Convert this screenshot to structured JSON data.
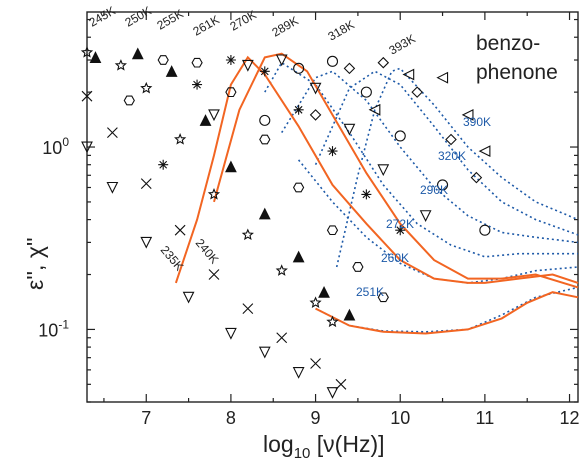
{
  "chart_data": {
    "type": "scatter",
    "xlabel_prefix": "log",
    "xlabel_sub": "10",
    "xlabel_suffix": " [ν(Hz)]",
    "ylabel": "ε'', χ''",
    "x_range": [
      6.3,
      12.1
    ],
    "y_range": [
      0.04,
      5.5
    ],
    "y_scale": "log",
    "x_ticks": [
      "7",
      "8",
      "9",
      "10",
      "11",
      "12"
    ],
    "y_ticks": [
      "10-1",
      "100"
    ],
    "annotation_line1": "benzo-",
    "annotation_line2": "phenone",
    "colors": {
      "solid": "#f26522",
      "dotted": "#1e5aa8",
      "marker": "#111111",
      "label_blue": "#1e5aa8"
    },
    "markers": [
      {
        "T": "235K",
        "marker": "triangle-down-open",
        "points": [
          [
            6.3,
            1.0
          ],
          [
            6.6,
            0.6
          ],
          [
            7.0,
            0.3
          ],
          [
            7.5,
            0.15
          ],
          [
            8.0,
            0.095
          ],
          [
            8.4,
            0.075
          ],
          [
            8.8,
            0.058
          ],
          [
            9.2,
            0.045
          ]
        ]
      },
      {
        "T": "240K",
        "marker": "x",
        "points": [
          [
            6.3,
            1.9
          ],
          [
            6.6,
            1.2
          ],
          [
            7.0,
            0.63
          ],
          [
            7.4,
            0.35
          ],
          [
            7.8,
            0.2
          ],
          [
            8.2,
            0.13
          ],
          [
            8.6,
            0.09
          ],
          [
            9.0,
            0.065
          ],
          [
            9.3,
            0.05
          ]
        ]
      },
      {
        "T": "245K",
        "marker": "star-open",
        "points": [
          [
            6.3,
            3.3
          ],
          [
            6.7,
            2.8
          ],
          [
            7.0,
            2.1
          ],
          [
            7.4,
            1.1
          ],
          [
            7.8,
            0.55
          ],
          [
            8.2,
            0.33
          ],
          [
            8.6,
            0.21
          ],
          [
            9.0,
            0.14
          ],
          [
            9.2,
            0.11
          ]
        ]
      },
      {
        "T": "250K",
        "marker": "triangle-up-filled",
        "points": [
          [
            6.4,
            3.1
          ],
          [
            6.9,
            3.25
          ],
          [
            7.3,
            2.6
          ],
          [
            7.7,
            1.4
          ],
          [
            8.0,
            0.78
          ],
          [
            8.4,
            0.43
          ],
          [
            8.8,
            0.25
          ],
          [
            9.1,
            0.16
          ],
          [
            9.4,
            0.12
          ]
        ]
      },
      {
        "T": "255K",
        "marker": "hexagon-open",
        "points": [
          [
            6.8,
            1.8
          ],
          [
            7.2,
            3.0
          ],
          [
            7.6,
            2.9
          ],
          [
            8.0,
            2.0
          ],
          [
            8.4,
            1.1
          ],
          [
            8.8,
            0.6
          ],
          [
            9.2,
            0.35
          ],
          [
            9.5,
            0.22
          ],
          [
            9.8,
            0.15
          ]
        ]
      },
      {
        "T": "261K",
        "marker": "asterisk",
        "points": [
          [
            7.2,
            0.8
          ],
          [
            7.6,
            2.2
          ],
          [
            8.0,
            3.0
          ],
          [
            8.4,
            2.6
          ],
          [
            8.8,
            1.6
          ],
          [
            9.2,
            0.95
          ],
          [
            9.6,
            0.55
          ],
          [
            10.0,
            0.35
          ]
        ]
      },
      {
        "T": "270K",
        "marker": "triangle-down-open",
        "points": [
          [
            7.8,
            1.5
          ],
          [
            8.2,
            2.8
          ],
          [
            8.6,
            3.0
          ],
          [
            9.0,
            2.1
          ],
          [
            9.4,
            1.25
          ],
          [
            9.8,
            0.75
          ],
          [
            10.3,
            0.42
          ]
        ]
      },
      {
        "T": "289K",
        "marker": "circle-open",
        "points": [
          [
            8.4,
            1.4
          ],
          [
            8.8,
            2.7
          ],
          [
            9.2,
            2.95
          ],
          [
            9.6,
            2.0
          ],
          [
            10.0,
            1.15
          ],
          [
            10.5,
            0.62
          ],
          [
            11.0,
            0.35
          ]
        ]
      },
      {
        "T": "318K",
        "marker": "diamond-open",
        "points": [
          [
            9.0,
            1.5
          ],
          [
            9.4,
            2.7
          ],
          [
            9.8,
            2.9
          ],
          [
            10.2,
            2.0
          ],
          [
            10.6,
            1.1
          ],
          [
            10.9,
            0.68
          ]
        ]
      },
      {
        "T": "393K",
        "marker": "triangle-left-open",
        "points": [
          [
            9.7,
            1.6
          ],
          [
            10.1,
            2.5
          ],
          [
            10.5,
            2.4
          ],
          [
            10.8,
            1.5
          ],
          [
            11.0,
            0.95
          ]
        ]
      }
    ],
    "solid_curves": [
      {
        "name": "261K",
        "points": [
          [
            7.35,
            0.18
          ],
          [
            7.6,
            0.4
          ],
          [
            7.8,
            0.9
          ],
          [
            8.0,
            2.2
          ],
          [
            8.2,
            3.1
          ],
          [
            8.4,
            2.5
          ],
          [
            8.8,
            1.3
          ],
          [
            9.2,
            0.62
          ],
          [
            9.6,
            0.38
          ],
          [
            10.0,
            0.24
          ],
          [
            10.4,
            0.19
          ],
          [
            10.8,
            0.18
          ],
          [
            11.0,
            0.18
          ],
          [
            11.4,
            0.19
          ],
          [
            11.8,
            0.2
          ],
          [
            12.1,
            0.18
          ]
        ]
      },
      {
        "name": "270K",
        "points": [
          [
            7.8,
            0.5
          ],
          [
            8.1,
            1.6
          ],
          [
            8.4,
            3.1
          ],
          [
            8.6,
            3.25
          ],
          [
            8.9,
            2.6
          ],
          [
            9.2,
            1.5
          ],
          [
            9.6,
            0.72
          ],
          [
            10.0,
            0.38
          ],
          [
            10.4,
            0.24
          ],
          [
            10.8,
            0.19
          ],
          [
            11.2,
            0.19
          ],
          [
            11.6,
            0.2
          ],
          [
            12.1,
            0.17
          ]
        ]
      },
      {
        "name": "low-T",
        "points": [
          [
            9.0,
            0.13
          ],
          [
            9.4,
            0.105
          ],
          [
            9.8,
            0.097
          ],
          [
            10.3,
            0.095
          ],
          [
            10.8,
            0.1
          ],
          [
            11.2,
            0.115
          ],
          [
            11.5,
            0.14
          ],
          [
            11.8,
            0.16
          ],
          [
            12.1,
            0.15
          ]
        ]
      }
    ],
    "dotted_curves": [
      {
        "name": "390K",
        "label": "390K",
        "points": [
          [
            9.25,
            0.22
          ],
          [
            9.5,
            0.7
          ],
          [
            9.7,
            1.6
          ],
          [
            9.9,
            2.6
          ],
          [
            10.0,
            2.7
          ],
          [
            10.4,
            1.7
          ],
          [
            10.8,
            1.0
          ],
          [
            11.2,
            0.68
          ],
          [
            11.6,
            0.5
          ],
          [
            12.1,
            0.4
          ]
        ]
      },
      {
        "name": "320K",
        "label": "320K",
        "points": [
          [
            9.0,
            0.8
          ],
          [
            9.4,
            2.1
          ],
          [
            9.7,
            2.6
          ],
          [
            10.0,
            2.2
          ],
          [
            10.4,
            1.3
          ],
          [
            10.8,
            0.75
          ],
          [
            11.2,
            0.5
          ],
          [
            11.6,
            0.4
          ],
          [
            12.1,
            0.33
          ]
        ]
      },
      {
        "name": "290K",
        "label": "290K",
        "points": [
          [
            8.6,
            1.2
          ],
          [
            9.0,
            2.4
          ],
          [
            9.2,
            2.6
          ],
          [
            9.6,
            1.8
          ],
          [
            10.0,
            1.0
          ],
          [
            10.4,
            0.6
          ],
          [
            10.8,
            0.42
          ],
          [
            11.2,
            0.34
          ],
          [
            11.6,
            0.32
          ],
          [
            12.1,
            0.3
          ]
        ]
      },
      {
        "name": "272K",
        "label": "272K",
        "points": [
          [
            8.4,
            2.0
          ],
          [
            8.6,
            2.9
          ],
          [
            9.0,
            2.2
          ],
          [
            9.4,
            1.2
          ],
          [
            9.8,
            0.62
          ],
          [
            10.2,
            0.38
          ],
          [
            10.6,
            0.29
          ],
          [
            11.0,
            0.25
          ],
          [
            11.4,
            0.26
          ],
          [
            12.1,
            0.26
          ]
        ]
      },
      {
        "name": "260K",
        "label": "260K",
        "points": [
          [
            8.8,
            0.85
          ],
          [
            9.2,
            0.5
          ],
          [
            9.6,
            0.32
          ],
          [
            10.0,
            0.23
          ],
          [
            10.4,
            0.19
          ],
          [
            10.8,
            0.18
          ],
          [
            11.2,
            0.19
          ],
          [
            11.6,
            0.21
          ],
          [
            12.1,
            0.22
          ]
        ]
      },
      {
        "name": "251K",
        "label": "251K",
        "points": [
          [
            9.0,
            0.13
          ],
          [
            9.4,
            0.105
          ],
          [
            9.8,
            0.098
          ],
          [
            10.3,
            0.097
          ],
          [
            10.8,
            0.1
          ],
          [
            11.2,
            0.12
          ],
          [
            11.6,
            0.15
          ],
          [
            12.1,
            0.17
          ]
        ]
      }
    ],
    "temperature_labels": [
      "235K",
      "240K",
      "245K",
      "250K",
      "255K",
      "261K",
      "270K",
      "289K",
      "318K",
      "393K"
    ]
  }
}
